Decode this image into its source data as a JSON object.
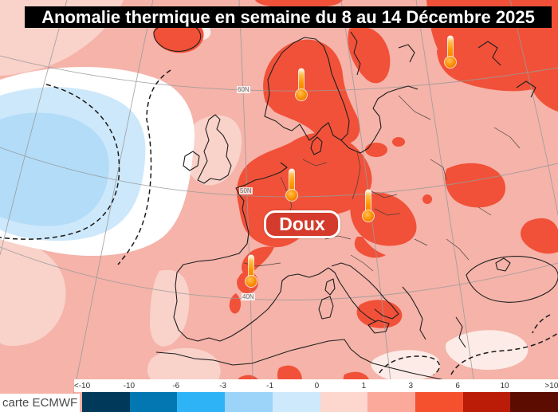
{
  "title": "Anomalie thermique en semaine du 8 au 14 Décembre 2025",
  "map": {
    "badge_label": "Doux",
    "latitude_labels": [
      "60N",
      "50N",
      "40N"
    ],
    "markers": {
      "icon": "thermometer-icon",
      "count": 5
    },
    "colors": {
      "badge_red": "#d43b2c",
      "warm_anomaly_red": "#f15139",
      "base_pink": "#f5b3a9",
      "light_pink": "#f9d2ca",
      "cold_anomaly_blue": "#cde8fb",
      "cold_anomaly_blue_inner": "#b2dcf8"
    }
  },
  "legend": {
    "source_label": "carte ECMWF",
    "ticks": [
      "<-10",
      "-10",
      "-6",
      "-3",
      "-1",
      "0",
      "1",
      "3",
      "6",
      "10",
      ">10"
    ],
    "colors": [
      "#01395a",
      "#0277b2",
      "#2fb3f7",
      "#9cd3f8",
      "#cfe9fc",
      "#fdd6cd",
      "#fba99b",
      "#f5512f",
      "#bb1c07",
      "#5d0c01"
    ]
  }
}
